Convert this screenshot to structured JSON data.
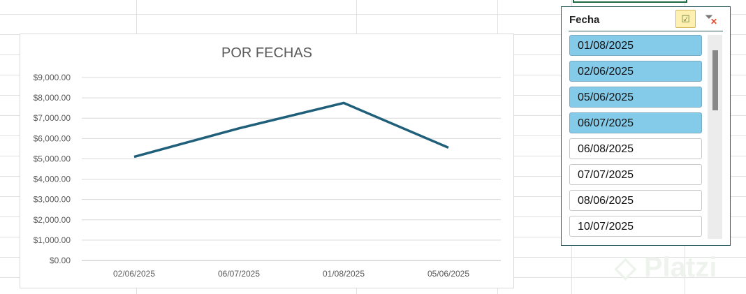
{
  "chart_data": {
    "type": "line",
    "title": "POR FECHAS",
    "categories": [
      "02/06/2025",
      "06/07/2025",
      "01/08/2025",
      "05/06/2025"
    ],
    "values": [
      5100,
      6500,
      7750,
      5550
    ],
    "ylim": [
      0,
      9000
    ],
    "yticks": [
      "$0.00",
      "$1,000.00",
      "$2,000.00",
      "$3,000.00",
      "$4,000.00",
      "$5,000.00",
      "$6,000.00",
      "$7,000.00",
      "$8,000.00",
      "$9,000.00"
    ],
    "grid": true,
    "color": "#1f5f7a"
  },
  "slicer": {
    "title": "Fecha",
    "multiselect_icon": "multi-select-icon",
    "clear_icon": "clear-filter-icon",
    "items": [
      {
        "label": "01/08/2025",
        "selected": true
      },
      {
        "label": "02/06/2025",
        "selected": true
      },
      {
        "label": "05/06/2025",
        "selected": true
      },
      {
        "label": "06/07/2025",
        "selected": true
      },
      {
        "label": "06/08/2025",
        "selected": false
      },
      {
        "label": "07/07/2025",
        "selected": false
      },
      {
        "label": "08/06/2025",
        "selected": false
      },
      {
        "label": "10/07/2025",
        "selected": false
      }
    ]
  },
  "watermark": "Platzi"
}
